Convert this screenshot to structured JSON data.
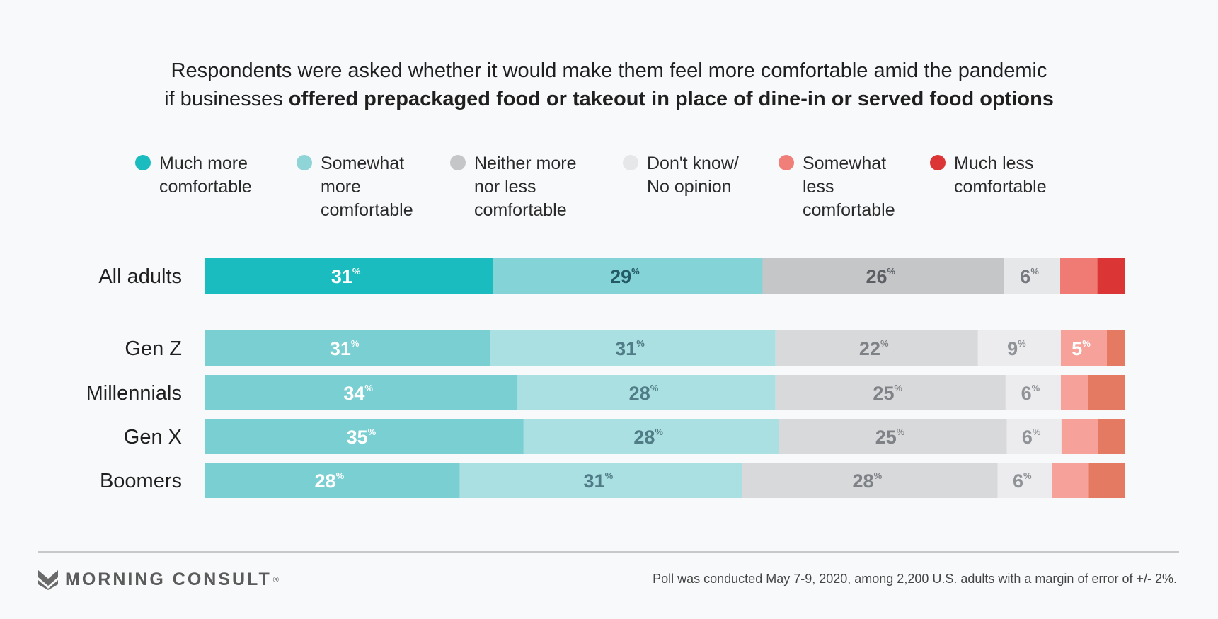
{
  "title": {
    "line1": "Respondents were asked whether it would make them feel more comfortable amid the pandemic",
    "line2_plain": "if businesses ",
    "line2_bold": "offered prepackaged food or takeout in place of dine-in or served food options"
  },
  "legend": [
    {
      "label": "Much more\ncomfortable",
      "color": "#1bbcbf"
    },
    {
      "label": "Somewhat\nmore\ncomfortable",
      "color": "#8fd5d8"
    },
    {
      "label": "Neither more\nnor less\ncomfortable",
      "color": "#c5c6c8"
    },
    {
      "label": "Don't know/\nNo opinion",
      "color": "#e6e7e9"
    },
    {
      "label": "Somewhat\nless\ncomfortable",
      "color": "#f07f7a"
    },
    {
      "label": "Much less\ncomfortable",
      "color": "#dc3535"
    }
  ],
  "chart_data": {
    "type": "bar",
    "orientation": "horizontal",
    "stacked": true,
    "normalized": true,
    "categories": [
      "All adults",
      "Gen Z",
      "Millennials",
      "Gen X",
      "Boomers"
    ],
    "series": [
      {
        "name": "Much more comfortable",
        "values": [
          31,
          31,
          34,
          35,
          28
        ]
      },
      {
        "name": "Somewhat more comfortable",
        "values": [
          29,
          31,
          28,
          28,
          31
        ]
      },
      {
        "name": "Neither more nor less comfortable",
        "values": [
          26,
          22,
          25,
          25,
          28
        ]
      },
      {
        "name": "Don't know/ No opinion",
        "values": [
          6,
          9,
          6,
          6,
          6
        ]
      },
      {
        "name": "Somewhat less comfortable",
        "values": [
          4,
          5,
          3,
          4,
          4
        ]
      },
      {
        "name": "Much less comfortable",
        "values": [
          3,
          2,
          4,
          3,
          4
        ]
      }
    ],
    "value_suffix": "%",
    "label_min_value": 5,
    "palettes": {
      "primary": [
        "#1bbcbf",
        "#84d3d6",
        "#c5c6c8",
        "#e6e7e9",
        "#f07a74",
        "#dc3535"
      ],
      "secondary": [
        "#7acfd2",
        "#abe0e2",
        "#d8d9db",
        "#ececee",
        "#f6a29a",
        "#e57a63"
      ]
    },
    "label_colors": {
      "primary": [
        "#ffffff",
        "#235a66",
        "#5b5e62",
        "#777a7e",
        "#ffffff",
        "#ffffff"
      ],
      "secondary": [
        "#ffffff",
        "#4f7c86",
        "#7e8185",
        "#8f9296",
        "#ffffff",
        "#ffffff"
      ]
    }
  },
  "footer": {
    "brand": "MORNING CONSULT",
    "note": "Poll was conducted May 7-9, 2020, among 2,200 U.S. adults with a margin of error of +/- 2%."
  }
}
